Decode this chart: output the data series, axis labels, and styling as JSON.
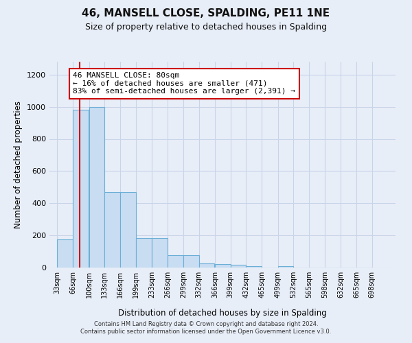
{
  "title1": "46, MANSELL CLOSE, SPALDING, PE11 1NE",
  "title2": "Size of property relative to detached houses in Spalding",
  "xlabel": "Distribution of detached houses by size in Spalding",
  "ylabel": "Number of detached properties",
  "bins": [
    33,
    66,
    100,
    133,
    166,
    199,
    233,
    266,
    299,
    332,
    366,
    399,
    432,
    465,
    499,
    532,
    565,
    598,
    632,
    665,
    698
  ],
  "bar_heights": [
    175,
    980,
    1000,
    470,
    470,
    185,
    185,
    75,
    75,
    25,
    20,
    15,
    10,
    0,
    10,
    0,
    0,
    0,
    0,
    0
  ],
  "bar_color": "#c9ddf2",
  "bar_edge_color": "#6baed6",
  "grid_color": "#c8d4e8",
  "bg_color": "#e8eef8",
  "red_line_x": 80,
  "red_line_color": "#cc0000",
  "annotation_text": "46 MANSELL CLOSE: 80sqm\n← 16% of detached houses are smaller (471)\n83% of semi-detached houses are larger (2,391) →",
  "annotation_box_color": "#ffffff",
  "annotation_border_color": "#cc0000",
  "ylim": [
    0,
    1280
  ],
  "yticks": [
    0,
    200,
    400,
    600,
    800,
    1000,
    1200
  ],
  "footnote": "Contains HM Land Registry data © Crown copyright and database right 2024.\nContains public sector information licensed under the Open Government Licence v3.0.",
  "tick_labels": [
    "33sqm",
    "66sqm",
    "100sqm",
    "133sqm",
    "166sqm",
    "199sqm",
    "233sqm",
    "266sqm",
    "299sqm",
    "332sqm",
    "366sqm",
    "399sqm",
    "432sqm",
    "465sqm",
    "499sqm",
    "532sqm",
    "565sqm",
    "598sqm",
    "632sqm",
    "665sqm",
    "698sqm"
  ]
}
